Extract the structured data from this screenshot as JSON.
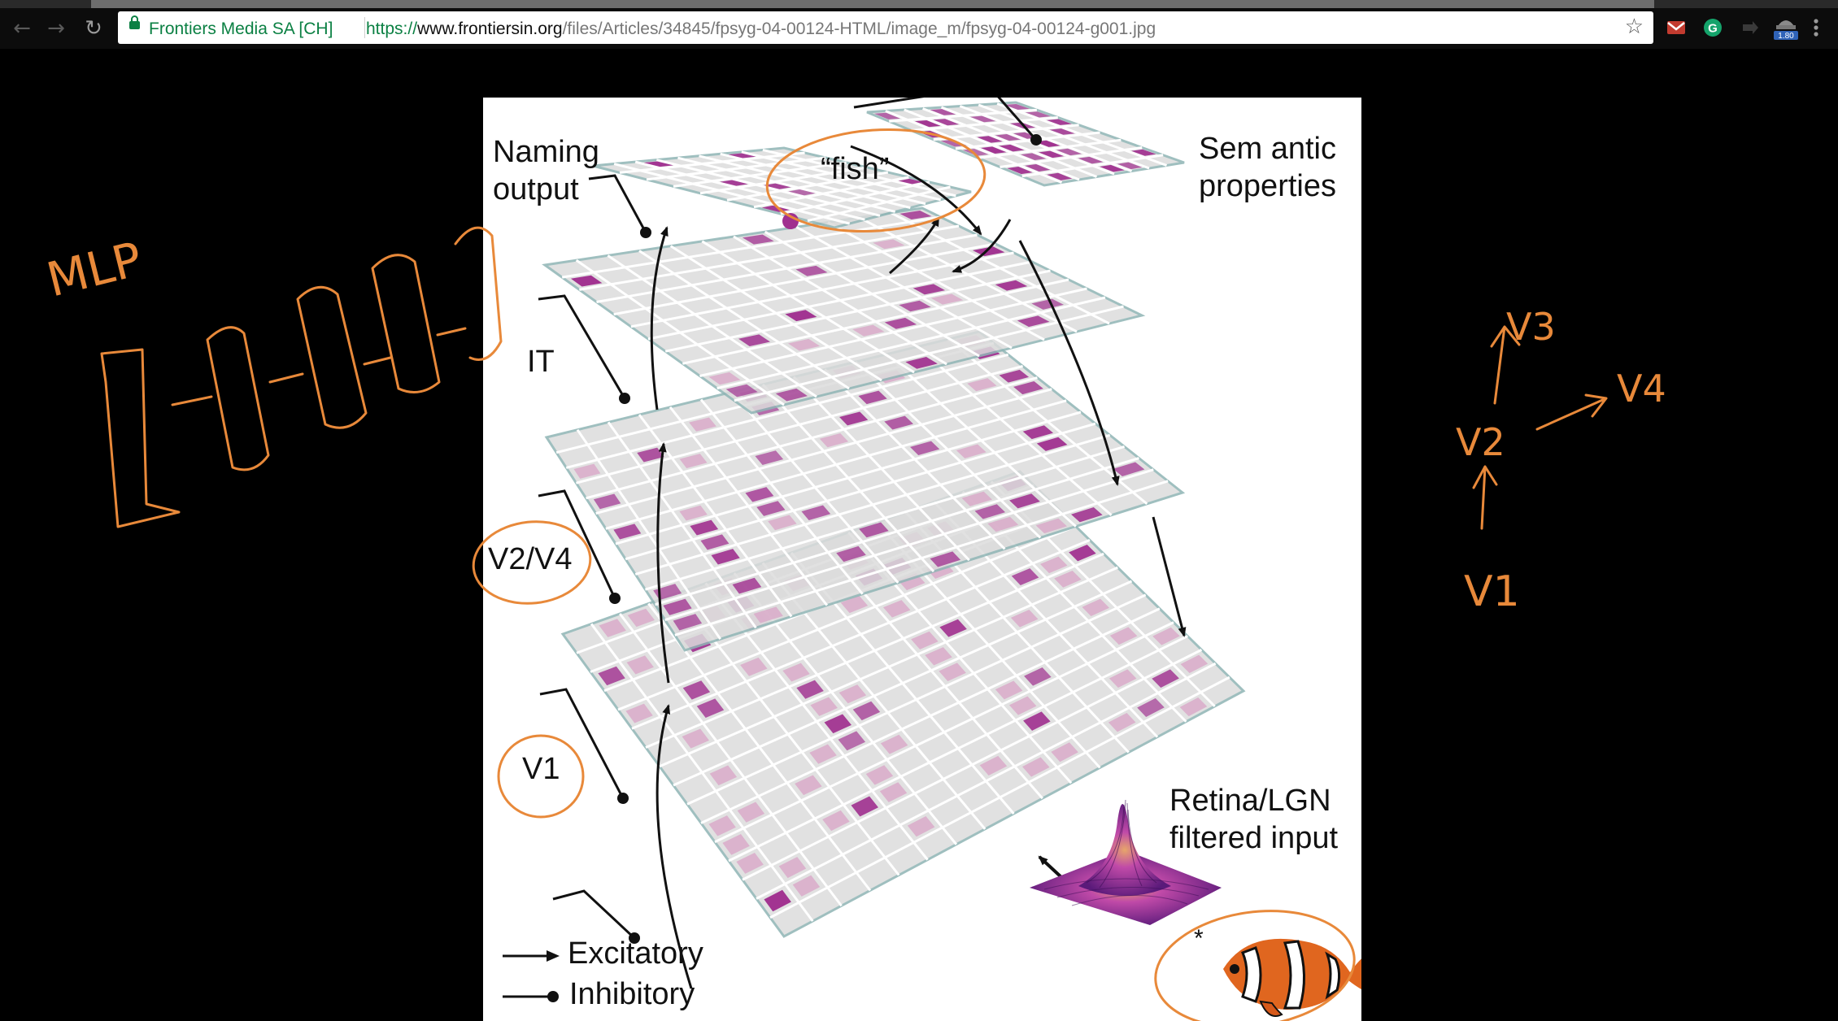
{
  "browser": {
    "site_identity": "Frontiers Media SA [CH]",
    "url_scheme": "https://",
    "url_host": "www.frontiersin.org",
    "url_path": "/files/Articles/34845/fpsyg-04-00124-HTML/image_m/fpsyg-04-00124-g001.jpg",
    "extension_badge": "1.80",
    "icons": [
      "back-arrow-icon",
      "forward-arrow-icon",
      "reload-icon",
      "lock-icon",
      "bookmark-star-icon",
      "gmail-icon",
      "grammarly-icon",
      "share-icon",
      "extension-icon",
      "menu-icon"
    ]
  },
  "figure": {
    "labels": {
      "naming_output": [
        "Naming",
        "output"
      ],
      "fish": "“fish”",
      "semantic_properties": [
        "Sem antic",
        "properties"
      ],
      "it": "IT",
      "v2v4": "V2/V4",
      "v1": "V1",
      "retina": [
        "Retina/LGN",
        "filtered input"
      ]
    },
    "legend": {
      "excitatory": "Excitatory",
      "inhibitory": "Inhibitory"
    },
    "colors": {
      "unit_active": "#a0308f",
      "unit_faint": "#d9a7c8",
      "grid_line": "#ffffff",
      "plane_fill": "#dcdcdc",
      "annotation_ink": "#e8893a"
    }
  },
  "annotations": {
    "mlp": "MLP",
    "v1": "V1",
    "v2": "V2",
    "v3": "V3",
    "v4": "V4"
  }
}
